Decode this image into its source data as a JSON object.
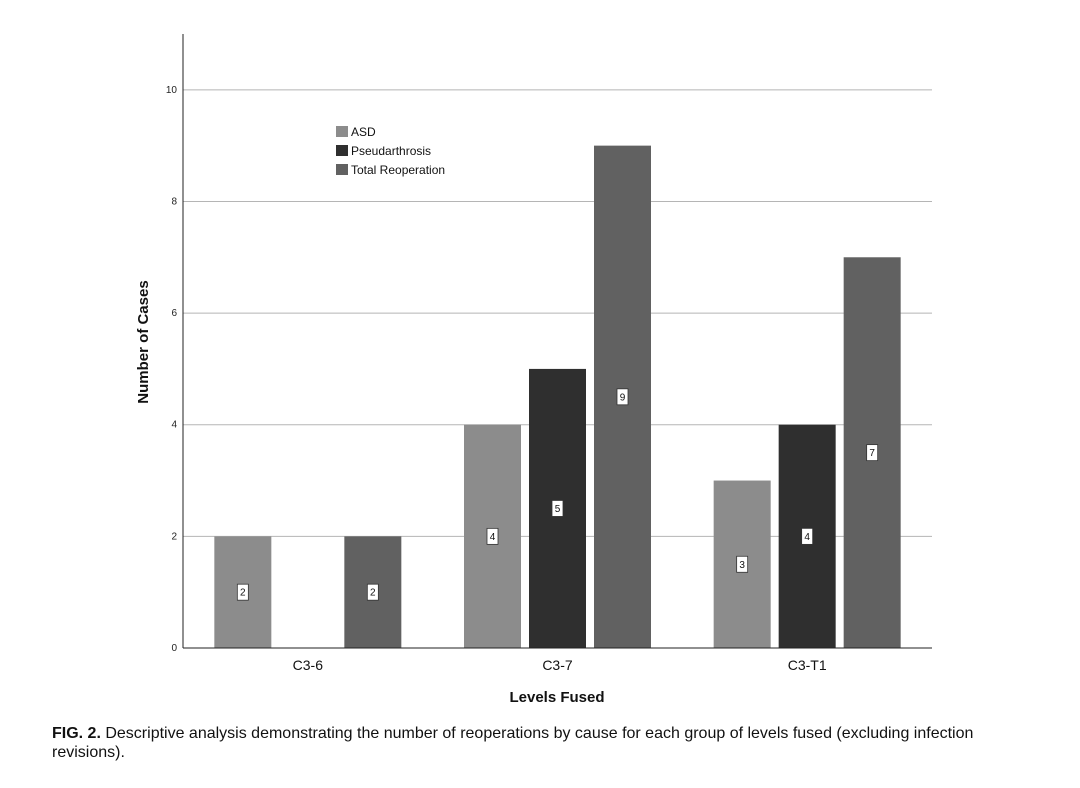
{
  "chart_data": {
    "type": "bar",
    "categories": [
      "C3-6",
      "C3-7",
      "C3-T1"
    ],
    "series": [
      {
        "name": "ASD",
        "values": [
          2,
          4,
          3
        ],
        "color": "#8c8c8c"
      },
      {
        "name": "Pseudarthrosis",
        "values": [
          0,
          5,
          4
        ],
        "color": "#2f2f2f"
      },
      {
        "name": "Total Reoperation",
        "values": [
          2,
          9,
          7
        ],
        "color": "#616161"
      }
    ],
    "data_labels": [
      [
        "2",
        "",
        "2"
      ],
      [
        "4",
        "5",
        "9"
      ],
      [
        "3",
        "4",
        "7"
      ]
    ],
    "xlabel": "Levels Fused",
    "ylabel": "Number of Cases",
    "ylim": [
      0,
      11
    ],
    "yticks": [
      0,
      2,
      4,
      6,
      8,
      10
    ],
    "grid": "horizontal",
    "legend_position": "top-left"
  },
  "caption": {
    "label": "FIG. 2.",
    "text": " Descriptive analysis demonstrating the number of reoperations by cause for each group of levels fused (excluding infection revisions)."
  }
}
